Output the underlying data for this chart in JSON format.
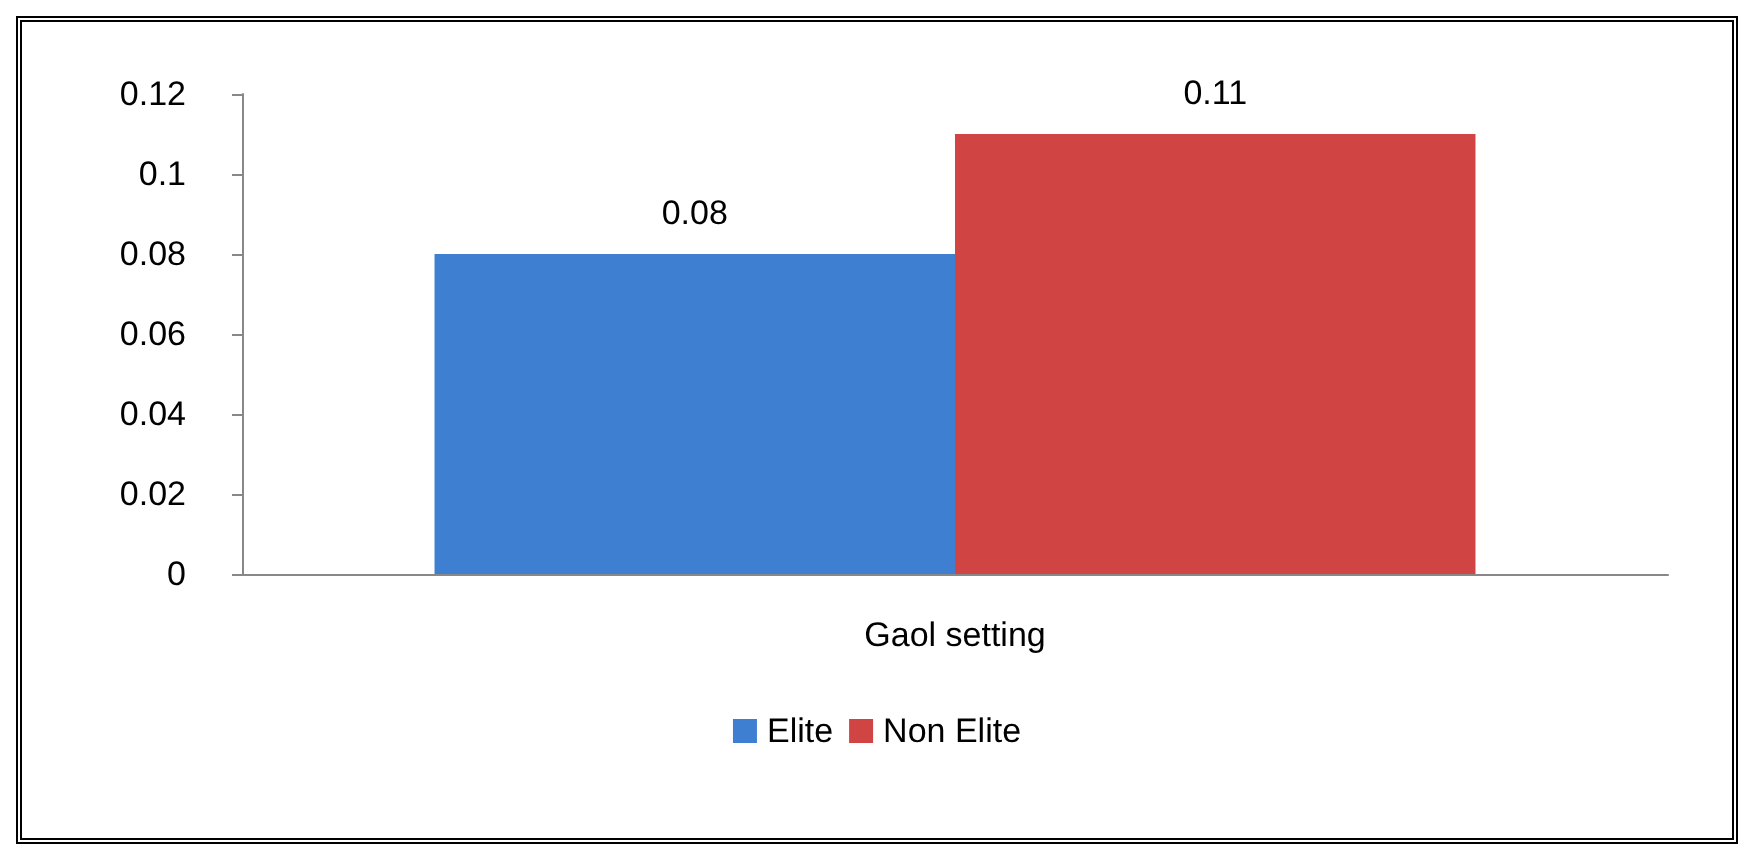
{
  "chart_data": {
    "type": "bar",
    "categories": [
      "Gaol setting"
    ],
    "series": [
      {
        "name": "Elite",
        "color": "#3f7fd1",
        "values": [
          0.08
        ]
      },
      {
        "name": "Non Elite",
        "color": "#d04444",
        "values": [
          0.11
        ]
      }
    ],
    "ylim": [
      0,
      0.12
    ],
    "yticks": [
      0,
      0.02,
      0.04,
      0.06,
      0.08,
      0.1,
      0.12
    ],
    "grid": false,
    "legend": "bottom",
    "data_labels": true
  }
}
